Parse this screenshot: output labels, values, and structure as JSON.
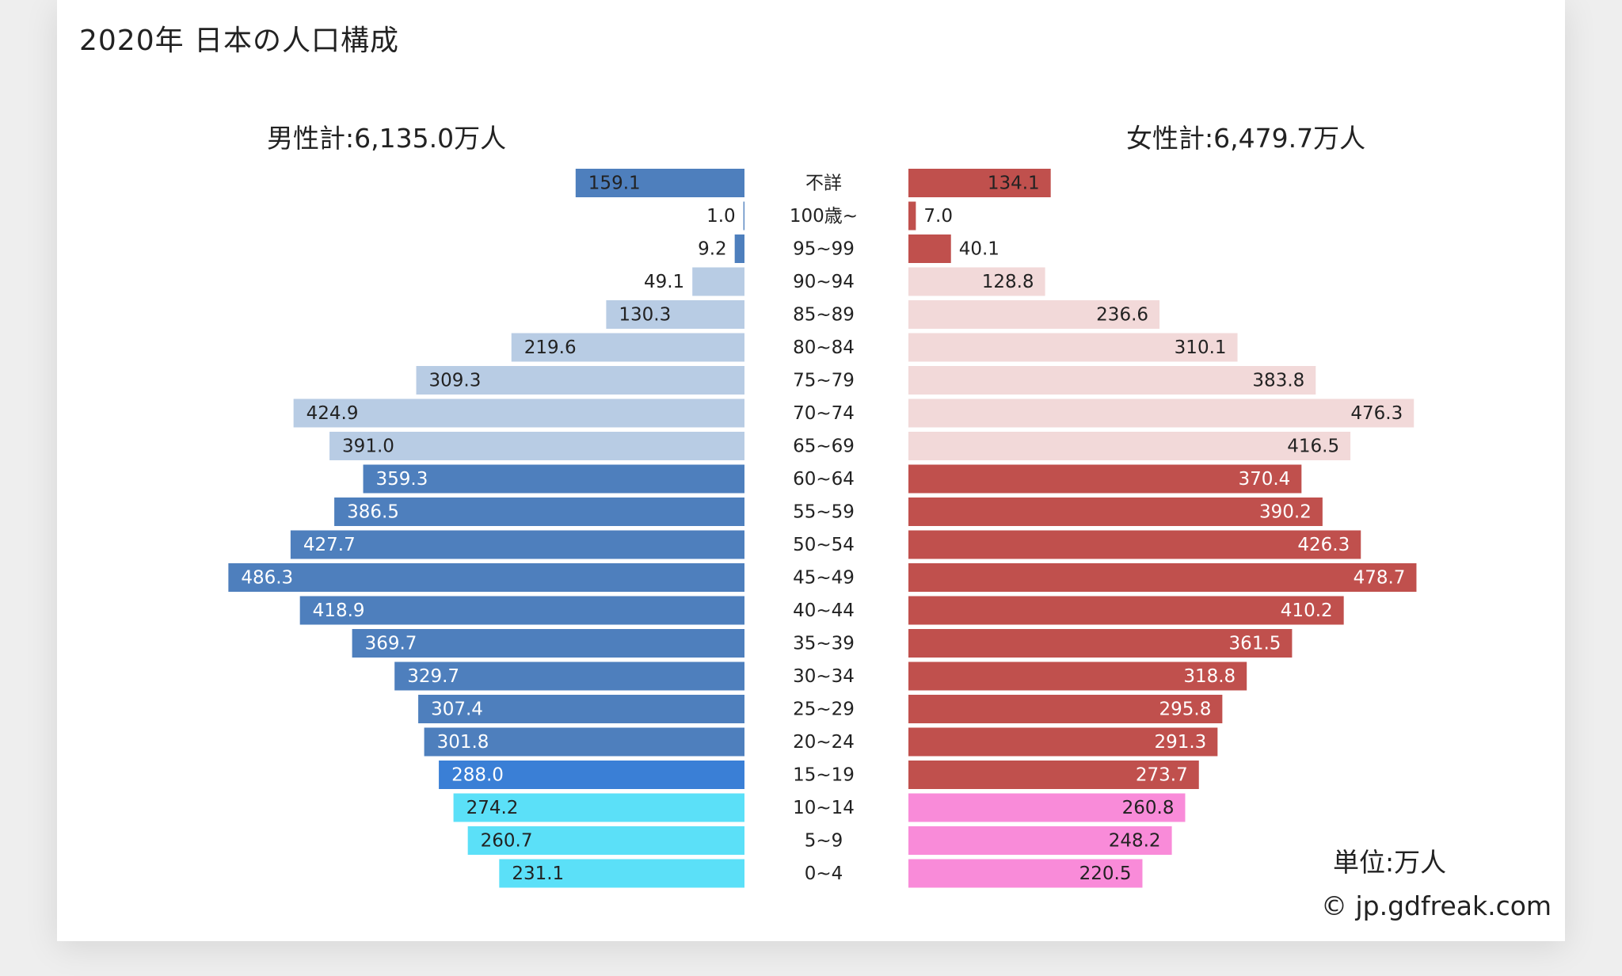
{
  "title": "2020年 日本の人口構成",
  "male_total": "男性計:6,135.0万人",
  "female_total": "女性計:6,479.7万人",
  "unit_label": "単位:万人",
  "credit": "© jp.gdfreak.com",
  "chart_data": {
    "type": "bar",
    "orientation": "horizontal-population-pyramid",
    "categories": [
      "不詳",
      "100歳~",
      "95~99",
      "90~94",
      "85~89",
      "80~84",
      "75~79",
      "70~74",
      "65~69",
      "60~64",
      "55~59",
      "50~54",
      "45~49",
      "40~44",
      "35~39",
      "30~34",
      "25~29",
      "20~24",
      "15~19",
      "10~14",
      "5~9",
      "0~4"
    ],
    "series": [
      {
        "values": [
          159.1,
          1.0,
          9.2,
          49.1,
          130.3,
          219.6,
          309.3,
          424.9,
          391.0,
          359.3,
          386.5,
          427.7,
          486.3,
          418.9,
          369.7,
          329.7,
          307.4,
          301.8,
          288.0,
          274.2,
          260.7,
          231.1
        ]
      },
      {
        "values": [
          134.1,
          7.0,
          40.1,
          128.8,
          236.6,
          310.1,
          383.8,
          476.3,
          416.5,
          370.4,
          390.2,
          426.3,
          478.7,
          410.2,
          361.5,
          318.8,
          295.8,
          291.3,
          273.7,
          260.8,
          248.2,
          220.5
        ]
      }
    ],
    "male_colors": [
      "#4e7fbd",
      "#4e7fbd",
      "#4e7fbd",
      "#b8cce4",
      "#b8cce4",
      "#b8cce4",
      "#b8cce4",
      "#b8cce4",
      "#b8cce4",
      "#4e7fbd",
      "#4e7fbd",
      "#4e7fbd",
      "#4e7fbd",
      "#4e7fbd",
      "#4e7fbd",
      "#4e7fbd",
      "#4e7fbd",
      "#4e7fbd",
      "#3a7fd6",
      "#5be0f8",
      "#5be0f8",
      "#5be0f8"
    ],
    "female_colors": [
      "#c0504d",
      "#c0504d",
      "#c0504d",
      "#f2d9d9",
      "#f2d9d9",
      "#f2d9d9",
      "#f2d9d9",
      "#f2d9d9",
      "#f2d9d9",
      "#c0504d",
      "#c0504d",
      "#c0504d",
      "#c0504d",
      "#c0504d",
      "#c0504d",
      "#c0504d",
      "#c0504d",
      "#c0504d",
      "#c0504d",
      "#f98bd9",
      "#f98bd9",
      "#f98bd9"
    ],
    "male_label_colors": [
      "#222222",
      "#222222",
      "#222222",
      "#222222",
      "#222222",
      "#222222",
      "#222222",
      "#222222",
      "#222222",
      "#ffffff",
      "#ffffff",
      "#ffffff",
      "#ffffff",
      "#ffffff",
      "#ffffff",
      "#ffffff",
      "#ffffff",
      "#ffffff",
      "#ffffff",
      "#222222",
      "#222222",
      "#222222"
    ],
    "female_label_colors": [
      "#222222",
      "#222222",
      "#222222",
      "#222222",
      "#222222",
      "#222222",
      "#222222",
      "#222222",
      "#222222",
      "#ffffff",
      "#ffffff",
      "#ffffff",
      "#ffffff",
      "#ffffff",
      "#ffffff",
      "#ffffff",
      "#ffffff",
      "#ffffff",
      "#ffffff",
      "#222222",
      "#222222",
      "#222222"
    ],
    "xlim": [
      0,
      500
    ]
  }
}
